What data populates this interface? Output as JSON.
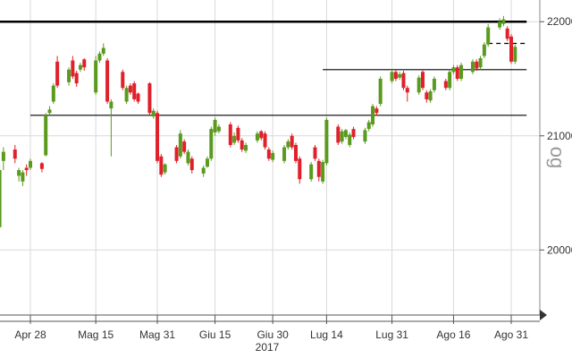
{
  "chart_data": {
    "type": "candlestick",
    "x_tick_labels": [
      "Apr 28",
      "Mag 15",
      "Mag 31",
      "Giu 15",
      "Giu 30",
      "Lug 14",
      "Lug 31",
      "Ago 16",
      "Ago 31"
    ],
    "year_label": "2017",
    "y_tick_labels": [
      "22000",
      "21000",
      "20000"
    ],
    "ylim": [
      19430,
      22190
    ],
    "watermark": "og",
    "colors": {
      "up": "#5a9a1e",
      "down": "#e0202a",
      "level": "#000000",
      "grid": "#d9d9d9"
    },
    "levels": [
      {
        "value": 22000,
        "from": "Apr 12",
        "to": "Sep 04",
        "style": "thick"
      },
      {
        "value": 21180,
        "from": "Apr 28",
        "to": "Sep 04",
        "style": "solid"
      },
      {
        "value": 21580,
        "from": "Jul 13",
        "to": "Sep 04",
        "style": "solid"
      },
      {
        "value": 21810,
        "from": "Aug 25",
        "to": "Sep 04",
        "style": "dashed"
      }
    ],
    "candles": [
      {
        "date": "Apr 18",
        "open": 19930,
        "close": 19720,
        "high": 19960,
        "low": 19680
      },
      {
        "date": "Apr 20",
        "open": 20200,
        "close": 20700,
        "high": 20750,
        "low": 20180
      },
      {
        "date": "Apr 21",
        "open": 20780,
        "close": 20860,
        "high": 20900,
        "low": 20700
      },
      {
        "date": "Apr 24",
        "open": 20880,
        "close": 20800,
        "high": 20920,
        "low": 20760
      },
      {
        "date": "Apr 25",
        "open": 20650,
        "close": 20700,
        "high": 20720,
        "low": 20600
      },
      {
        "date": "Apr 26",
        "open": 20600,
        "close": 20680,
        "high": 20700,
        "low": 20560
      },
      {
        "date": "Apr 27",
        "open": 20720,
        "close": 20700,
        "high": 20750,
        "low": 20650
      },
      {
        "date": "Apr 28",
        "open": 20720,
        "close": 20780,
        "high": 20800,
        "low": 20700
      },
      {
        "date": "May 01",
        "open": 20760,
        "close": 20710,
        "high": 20770,
        "low": 20680
      },
      {
        "date": "May 02",
        "open": 20830,
        "close": 21180,
        "high": 21200,
        "low": 20820
      },
      {
        "date": "May 03",
        "open": 21200,
        "close": 21230,
        "high": 21260,
        "low": 21180
      },
      {
        "date": "May 04",
        "open": 21300,
        "close": 21440,
        "high": 21460,
        "low": 21280
      },
      {
        "date": "May 05",
        "open": 21650,
        "close": 21440,
        "high": 21700,
        "low": 21420
      },
      {
        "date": "May 08",
        "open": 21470,
        "close": 21580,
        "high": 21600,
        "low": 21440
      },
      {
        "date": "May 09",
        "open": 21660,
        "close": 21520,
        "high": 21700,
        "low": 21500
      },
      {
        "date": "May 10",
        "open": 21550,
        "close": 21460,
        "high": 21570,
        "low": 21430
      },
      {
        "date": "May 11",
        "open": 21580,
        "close": 21620,
        "high": 21640,
        "low": 21560
      },
      {
        "date": "May 12",
        "open": 21670,
        "close": 21600,
        "high": 21680,
        "low": 21570
      },
      {
        "date": "May 15",
        "open": 21380,
        "close": 21660,
        "high": 21700,
        "low": 21360
      },
      {
        "date": "May 16",
        "open": 21660,
        "close": 21720,
        "high": 21740,
        "low": 21640
      },
      {
        "date": "May 17",
        "open": 21720,
        "close": 21770,
        "high": 21810,
        "low": 21700
      },
      {
        "date": "May 18",
        "open": 21660,
        "close": 21300,
        "high": 21680,
        "low": 21280
      },
      {
        "date": "May 19",
        "open": 21240,
        "close": 21300,
        "high": 21320,
        "low": 20820
      },
      {
        "date": "May 22",
        "open": 21560,
        "close": 21420,
        "high": 21580,
        "low": 21400
      },
      {
        "date": "May 23",
        "open": 21300,
        "close": 21420,
        "high": 21440,
        "low": 21280
      },
      {
        "date": "May 24",
        "open": 21440,
        "close": 21380,
        "high": 21460,
        "low": 21360
      },
      {
        "date": "May 25",
        "open": 21460,
        "close": 21320,
        "high": 21480,
        "low": 21300
      },
      {
        "date": "May 26",
        "open": 21370,
        "close": 21300,
        "high": 21380,
        "low": 21280
      },
      {
        "date": "May 29",
        "open": 21460,
        "close": 21200,
        "high": 21470,
        "low": 21180
      },
      {
        "date": "May 30",
        "open": 21170,
        "close": 21220,
        "high": 21240,
        "low": 21150
      },
      {
        "date": "May 31",
        "open": 21200,
        "close": 20780,
        "high": 21220,
        "low": 20760
      },
      {
        "date": "Jun 01",
        "open": 20820,
        "close": 20660,
        "high": 20840,
        "low": 20640
      },
      {
        "date": "Jun 02",
        "open": 20680,
        "close": 20750,
        "high": 20760,
        "low": 20660
      },
      {
        "date": "Jun 05",
        "open": 20900,
        "close": 20780,
        "high": 20920,
        "low": 20760
      },
      {
        "date": "Jun 06",
        "open": 20820,
        "close": 21020,
        "high": 21050,
        "low": 20800
      },
      {
        "date": "Jun 07",
        "open": 20950,
        "close": 20860,
        "high": 20970,
        "low": 20840
      },
      {
        "date": "Jun 08",
        "open": 20760,
        "close": 20860,
        "high": 20880,
        "low": 20740
      },
      {
        "date": "Jun 09",
        "open": 20800,
        "close": 20700,
        "high": 20820,
        "low": 20670
      },
      {
        "date": "Jun 12",
        "open": 20670,
        "close": 20720,
        "high": 20740,
        "low": 20640
      },
      {
        "date": "Jun 13",
        "open": 20730,
        "close": 20800,
        "high": 20820,
        "low": 20720
      },
      {
        "date": "Jun 14",
        "open": 20800,
        "close": 21060,
        "high": 21080,
        "low": 20780
      },
      {
        "date": "Jun 15",
        "open": 21030,
        "close": 21140,
        "high": 21160,
        "low": 21000
      },
      {
        "date": "Jun 16",
        "open": 21040,
        "close": 21080,
        "high": 21100,
        "low": 21020
      },
      {
        "date": "Jun 19",
        "open": 21100,
        "close": 20920,
        "high": 21120,
        "low": 20900
      },
      {
        "date": "Jun 20",
        "open": 20940,
        "close": 21000,
        "high": 21030,
        "low": 20920
      },
      {
        "date": "Jun 21",
        "open": 21070,
        "close": 20960,
        "high": 21090,
        "low": 20940
      },
      {
        "date": "Jun 22",
        "open": 20960,
        "close": 20880,
        "high": 20980,
        "low": 20860
      },
      {
        "date": "Jun 23",
        "open": 20870,
        "close": 20920,
        "high": 20940,
        "low": 20850
      },
      {
        "date": "Jun 26",
        "open": 20960,
        "close": 21020,
        "high": 21040,
        "low": 20940
      },
      {
        "date": "Jun 27",
        "open": 21040,
        "close": 20980,
        "high": 21050,
        "low": 20960
      },
      {
        "date": "Jun 28",
        "open": 21020,
        "close": 20900,
        "high": 21040,
        "low": 20880
      },
      {
        "date": "Jun 29",
        "open": 20880,
        "close": 20800,
        "high": 20900,
        "low": 20780
      },
      {
        "date": "Jun 30",
        "open": 20790,
        "close": 20850,
        "high": 20870,
        "low": 20770
      },
      {
        "date": "Jul 03",
        "open": 20780,
        "close": 20900,
        "high": 20920,
        "low": 20760
      },
      {
        "date": "Jul 04",
        "open": 20900,
        "close": 20950,
        "high": 20970,
        "low": 20880
      },
      {
        "date": "Jul 05",
        "open": 21000,
        "close": 20900,
        "high": 21020,
        "low": 20880
      },
      {
        "date": "Jul 06",
        "open": 20920,
        "close": 20780,
        "high": 20940,
        "low": 20760
      },
      {
        "date": "Jul 07",
        "open": 20800,
        "close": 20620,
        "high": 20820,
        "low": 20580
      },
      {
        "date": "Jul 10",
        "open": 20620,
        "close": 20750,
        "high": 20770,
        "low": 20600
      },
      {
        "date": "Jul 11",
        "open": 20900,
        "close": 20800,
        "high": 20920,
        "low": 20780
      },
      {
        "date": "Jul 12",
        "open": 20780,
        "close": 20640,
        "high": 20800,
        "low": 20600
      },
      {
        "date": "Jul 13",
        "open": 20600,
        "close": 20770,
        "high": 20790,
        "low": 20580
      },
      {
        "date": "Jul 14",
        "open": 20760,
        "close": 21140,
        "high": 21160,
        "low": 20740
      },
      {
        "date": "Jul 17",
        "open": 21080,
        "close": 20940,
        "high": 21100,
        "low": 20920
      },
      {
        "date": "Jul 18",
        "open": 20950,
        "close": 21040,
        "high": 21060,
        "low": 20930
      },
      {
        "date": "Jul 19",
        "open": 20990,
        "close": 21050,
        "high": 21060,
        "low": 20970
      },
      {
        "date": "Jul 20",
        "open": 20920,
        "close": 21010,
        "high": 21030,
        "low": 20900
      },
      {
        "date": "Jul 21",
        "open": 21060,
        "close": 20990,
        "high": 21080,
        "low": 20970
      },
      {
        "date": "Jul 24",
        "open": 20950,
        "close": 21050,
        "high": 21070,
        "low": 20930
      },
      {
        "date": "Jul 25",
        "open": 21060,
        "close": 21120,
        "high": 21140,
        "low": 21040
      },
      {
        "date": "Jul 26",
        "open": 21100,
        "close": 21260,
        "high": 21280,
        "low": 21080
      },
      {
        "date": "Jul 27",
        "open": 21240,
        "close": 21200,
        "high": 21260,
        "low": 21180
      },
      {
        "date": "Jul 28",
        "open": 21280,
        "close": 21500,
        "high": 21520,
        "low": 21260
      },
      {
        "date": "Jul 31",
        "open": 21480,
        "close": 21560,
        "high": 21580,
        "low": 21460
      },
      {
        "date": "Aug 01",
        "open": 21560,
        "close": 21500,
        "high": 21580,
        "low": 21480
      },
      {
        "date": "Aug 02",
        "open": 21510,
        "close": 21540,
        "high": 21560,
        "low": 21490
      },
      {
        "date": "Aug 03",
        "open": 21550,
        "close": 21420,
        "high": 21570,
        "low": 21400
      },
      {
        "date": "Aug 04",
        "open": 21420,
        "close": 21380,
        "high": 21440,
        "low": 21300
      },
      {
        "date": "Aug 07",
        "open": 21380,
        "close": 21510,
        "high": 21530,
        "low": 21360
      },
      {
        "date": "Aug 08",
        "open": 21560,
        "close": 21420,
        "high": 21580,
        "low": 21400
      },
      {
        "date": "Aug 09",
        "open": 21380,
        "close": 21320,
        "high": 21400,
        "low": 21290
      },
      {
        "date": "Aug 10",
        "open": 21310,
        "close": 21390,
        "high": 21410,
        "low": 21290
      },
      {
        "date": "Aug 11",
        "open": 21400,
        "close": 21500,
        "high": 21520,
        "low": 21380
      },
      {
        "date": "Aug 14",
        "open": 21480,
        "close": 21420,
        "high": 21500,
        "low": 21400
      },
      {
        "date": "Aug 15",
        "open": 21420,
        "close": 21560,
        "high": 21580,
        "low": 21400
      },
      {
        "date": "Aug 16",
        "open": 21560,
        "close": 21600,
        "high": 21620,
        "low": 21540
      },
      {
        "date": "Aug 17",
        "open": 21600,
        "close": 21500,
        "high": 21620,
        "low": 21480
      },
      {
        "date": "Aug 18",
        "open": 21500,
        "close": 21620,
        "high": 21640,
        "low": 21480
      },
      {
        "date": "Aug 21",
        "open": 21560,
        "close": 21650,
        "high": 21670,
        "low": 21540
      },
      {
        "date": "Aug 22",
        "open": 21650,
        "close": 21590,
        "high": 21670,
        "low": 21570
      },
      {
        "date": "Aug 23",
        "open": 21600,
        "close": 21680,
        "high": 21700,
        "low": 21580
      },
      {
        "date": "Aug 24",
        "open": 21700,
        "close": 21800,
        "high": 21820,
        "low": 21680
      },
      {
        "date": "Aug 25",
        "open": 21800,
        "close": 21950,
        "high": 21980,
        "low": 21780
      },
      {
        "date": "Aug 28",
        "open": 21950,
        "close": 22000,
        "high": 22030,
        "low": 21930
      },
      {
        "date": "Aug 29",
        "open": 21980,
        "close": 22020,
        "high": 22050,
        "low": 21960
      },
      {
        "date": "Aug 30",
        "open": 21940,
        "close": 21850,
        "high": 21960,
        "low": 21830
      },
      {
        "date": "Aug 31",
        "open": 21870,
        "close": 21650,
        "high": 21890,
        "low": 21630
      },
      {
        "date": "Sep 01",
        "open": 21650,
        "close": 21780,
        "high": 21800,
        "low": 21630
      }
    ]
  }
}
